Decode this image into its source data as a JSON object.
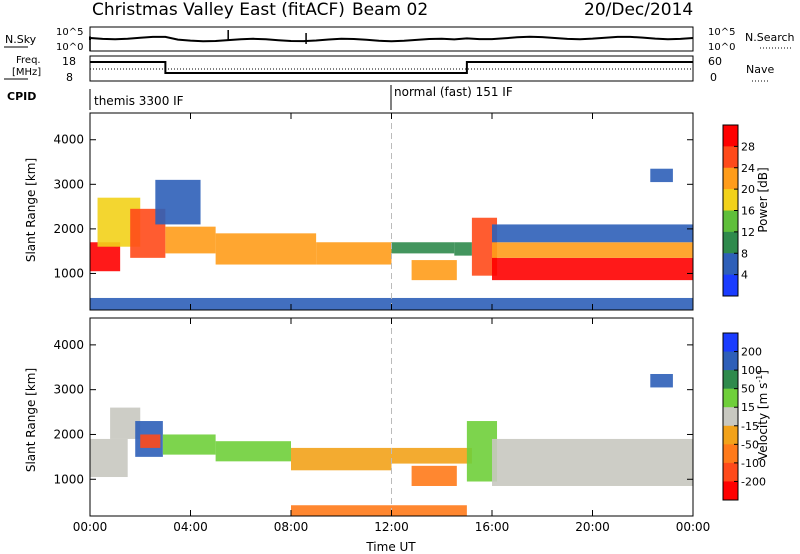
{
  "header": {
    "title": "Christmas Valley East (fitACF)",
    "beam": "Beam 02",
    "date": "20/Dec/2014"
  },
  "control_panel": {
    "nsky_label": "N.Sky",
    "nsky_ticks": [
      "10^5",
      "10^0"
    ],
    "nsearch_label": "N.Search",
    "nsearch_ticks": [
      "10^5",
      "10^0"
    ],
    "freq_label_line1": "Freq.",
    "freq_label_line2": "[MHz]",
    "freq_ticks": [
      "18",
      "8"
    ],
    "nave_label": "Nave",
    "nave_ticks": [
      "60",
      "0"
    ],
    "cpid_label": "CPID",
    "cpid_entries": [
      {
        "text": "themis 3300 IF",
        "start_hour": 0
      },
      {
        "text": "normal (fast) 151 IF",
        "start_hour": 12
      }
    ],
    "freq_steps": [
      {
        "from": 0,
        "to": 3,
        "level": "high"
      },
      {
        "from": 3,
        "to": 15,
        "level": "low"
      },
      {
        "from": 15,
        "to": 24,
        "level": "high"
      }
    ]
  },
  "chart_data": [
    {
      "type": "heatmap",
      "title": "Power",
      "ylabel": "Slant Range [km]",
      "y_ticks": [
        "1000",
        "2000",
        "3000",
        "4000"
      ],
      "ylim": [
        180,
        4600
      ],
      "xlim": [
        0,
        24
      ],
      "colorbar_label": "Power [dB]",
      "colorbar_ticks": [
        "4",
        "8",
        "12",
        "16",
        "20",
        "24",
        "28"
      ],
      "colors": [
        "#1a3cff",
        "#2e5fb8",
        "#2f8a4c",
        "#5fbf3a",
        "#f2d21a",
        "#ff9c1a",
        "#ff4a1a",
        "#ff0000"
      ],
      "regions": [
        {
          "x0": 0.0,
          "x1": 1.2,
          "y0": 1050,
          "y1": 1700,
          "v": 28
        },
        {
          "x0": 0.3,
          "x1": 2.0,
          "y0": 1600,
          "y1": 2700,
          "v": 18
        },
        {
          "x0": 1.6,
          "x1": 3.0,
          "y0": 1350,
          "y1": 2450,
          "v": 24
        },
        {
          "x0": 2.6,
          "x1": 4.4,
          "y0": 2100,
          "y1": 3100,
          "v": 6
        },
        {
          "x0": 3.0,
          "x1": 5.0,
          "y0": 1450,
          "y1": 2050,
          "v": 20
        },
        {
          "x0": 5.0,
          "x1": 9.0,
          "y0": 1200,
          "y1": 1900,
          "v": 22
        },
        {
          "x0": 9.0,
          "x1": 12.0,
          "y0": 1200,
          "y1": 1700,
          "v": 20
        },
        {
          "x0": 12.0,
          "x1": 14.5,
          "y0": 1450,
          "y1": 1700,
          "v": 10
        },
        {
          "x0": 12.8,
          "x1": 14.6,
          "y0": 850,
          "y1": 1300,
          "v": 22
        },
        {
          "x0": 14.5,
          "x1": 15.2,
          "y0": 1400,
          "y1": 1700,
          "v": 8
        },
        {
          "x0": 15.2,
          "x1": 16.2,
          "y0": 950,
          "y1": 2250,
          "v": 24
        },
        {
          "x0": 16.0,
          "x1": 24.0,
          "y0": 850,
          "y1": 1350,
          "v": 30
        },
        {
          "x0": 16.0,
          "x1": 24.0,
          "y0": 1350,
          "y1": 1700,
          "v": 20
        },
        {
          "x0": 16.0,
          "x1": 24.0,
          "y0": 1700,
          "y1": 2100,
          "v": 6
        },
        {
          "x0": 22.3,
          "x1": 23.2,
          "y0": 3050,
          "y1": 3350,
          "v": 6
        },
        {
          "x0": 0.0,
          "x1": 24.0,
          "y0": 180,
          "y1": 450,
          "v": 4
        }
      ]
    },
    {
      "type": "heatmap",
      "title": "Velocity",
      "ylabel": "Slant Range [km]",
      "y_ticks": [
        "1000",
        "2000",
        "3000",
        "4000"
      ],
      "ylim": [
        180,
        4600
      ],
      "xlim": [
        0,
        24
      ],
      "x_ticks": [
        "00:00",
        "04:00",
        "08:00",
        "12:00",
        "16:00",
        "20:00",
        "00:00"
      ],
      "xlabel": "Time UT",
      "colorbar_label": "Velocity [m s",
      "colorbar_sup": "-1",
      "colorbar_ticks": [
        "200",
        "100",
        "50",
        "15",
        "-15",
        "-50",
        "-100",
        "-200"
      ],
      "colors": [
        "#1a3cff",
        "#2e5fb8",
        "#2f8a4c",
        "#6fcf3a",
        "#c8c8c0",
        "#f2a21a",
        "#ff7a1a",
        "#ff4a1a",
        "#ff0000"
      ],
      "regions": [
        {
          "x0": 0.0,
          "x1": 1.5,
          "y0": 1050,
          "y1": 1900,
          "v": 0
        },
        {
          "x0": 0.8,
          "x1": 2.0,
          "y0": 1900,
          "y1": 2600,
          "v": 0
        },
        {
          "x0": 1.8,
          "x1": 2.9,
          "y0": 1500,
          "y1": 2300,
          "v": 150
        },
        {
          "x0": 2.0,
          "x1": 2.8,
          "y0": 1700,
          "y1": 2000,
          "v": -200
        },
        {
          "x0": 2.9,
          "x1": 5.0,
          "y0": 1550,
          "y1": 2000,
          "v": 30
        },
        {
          "x0": 5.0,
          "x1": 8.0,
          "y0": 1400,
          "y1": 1850,
          "v": 40
        },
        {
          "x0": 8.0,
          "x1": 12.0,
          "y0": 1200,
          "y1": 1700,
          "v": -40
        },
        {
          "x0": 12.0,
          "x1": 15.2,
          "y0": 1350,
          "y1": 1700,
          "v": -40
        },
        {
          "x0": 12.8,
          "x1": 14.6,
          "y0": 850,
          "y1": 1300,
          "v": -60
        },
        {
          "x0": 15.0,
          "x1": 16.2,
          "y0": 950,
          "y1": 2300,
          "v": 30
        },
        {
          "x0": 16.0,
          "x1": 24.0,
          "y0": 850,
          "y1": 1900,
          "v": 0
        },
        {
          "x0": 8.0,
          "x1": 15.0,
          "y0": 180,
          "y1": 420,
          "v": -60
        },
        {
          "x0": 22.3,
          "x1": 23.2,
          "y0": 3050,
          "y1": 3350,
          "v": 120
        }
      ]
    }
  ]
}
